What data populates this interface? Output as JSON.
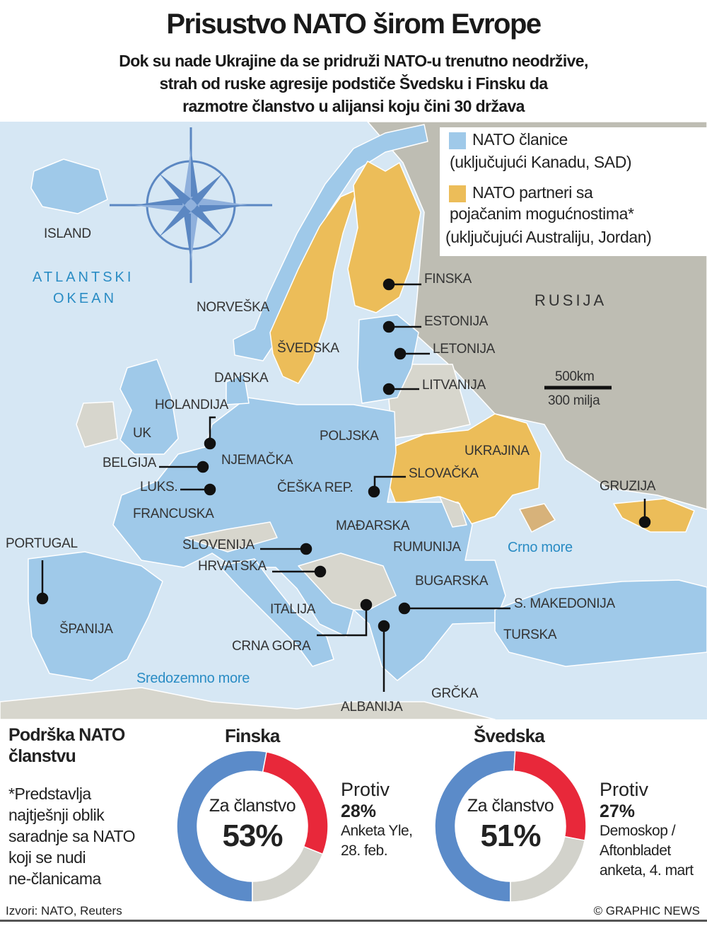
{
  "title": "Prisustvo NATO širom Evrope",
  "subtitle": [
    "Dok su nade Ukrajine da se pridruži NATO-u trenutno neodržive,",
    "strah od ruske agresije  podstiče Švedsku i Finsku da",
    "razmotre članstvo u alijansi koju čini 30 država"
  ],
  "colors": {
    "nato": "#9fc9e9",
    "partner": "#ecbd59",
    "non_member": "#d7d6cd",
    "russia": "#bebdb3",
    "sea": "#d6e7f4",
    "for": "#5b8bc9",
    "against": "#e8283a",
    "undecided": "#d2d2cb"
  },
  "legend": {
    "nato_line1": "NATO članice",
    "nato_line2": "(uključujući Kanadu, SAD)",
    "partner_line1": "NATO partneri sa",
    "partner_line2": "pojačanim mogućnostima*",
    "partner_line3": "(uključujući Australiju, Jordan)"
  },
  "scale": {
    "km": "500km",
    "miles": "300 milja"
  },
  "seas": {
    "atlantic1": "ATLANTSKI",
    "atlantic2": "OKEAN",
    "black": "Crno more",
    "med": "Sredozemno more"
  },
  "countries": {
    "island": "ISLAND",
    "norveska": "NORVEŠKA",
    "svedska": "ŠVEDSKA",
    "finska": "FINSKA",
    "estonija": "ESTONIJA",
    "letonija": "LETONIJA",
    "litvanija": "LITVANIJA",
    "rusija": "RUSIJA",
    "danska": "DANSKA",
    "holandija": "HOLANDIJA",
    "uk": "UK",
    "belgija": "BELGIJA",
    "luks": "LUKS.",
    "njemacka": "NJEMAČKA",
    "poljska": "POLJSKA",
    "ukrajina": "UKRAJINA",
    "slovacka": "SLOVAČKA",
    "ceska": "ČEŠKA REP.",
    "francuska": "FRANCUSKA",
    "gruzija": "GRUZIJA",
    "portugal": "PORTUGAL",
    "madjarska": "MAĐARSKA",
    "slovenija": "SLOVENIJA",
    "rumunija": "RUMUNIJA",
    "hrvatska": "HRVATSKA",
    "bugarska": "BUGARSKA",
    "makedonija": "S. MAKEDONIJA",
    "italija": "ITALIJA",
    "spanija": "ŠPANIJA",
    "turska": "TURSKA",
    "crna_gora": "CRNA GORA",
    "grcka": "GRČKA",
    "albanija": "ALBANIJA"
  },
  "support": {
    "heading1": "Podrška NATO",
    "heading2": "članstvu",
    "note": [
      "*Predstavlja",
      "najtješnji oblik",
      "saradnje sa NATO",
      "koji se nudi",
      "ne-članicama"
    ],
    "center_label": "Za članstvo",
    "against_label": "Protiv"
  },
  "chart_data": [
    {
      "type": "pie",
      "title": "Finska",
      "categories": [
        "Za članstvo",
        "Protiv",
        "Ostalo"
      ],
      "values": [
        53,
        28,
        19
      ],
      "labels": [
        "53%",
        "28%"
      ],
      "source": [
        "Anketa Yle,",
        "28. feb."
      ]
    },
    {
      "type": "pie",
      "title": "Švedska",
      "categories": [
        "Za članstvo",
        "Protiv",
        "Ostalo"
      ],
      "values": [
        51,
        27,
        22
      ],
      "labels": [
        "51%",
        "27%"
      ],
      "source": [
        "Demoskop /",
        "Aftonbladet",
        "anketa, 4. mart"
      ]
    }
  ],
  "footer": {
    "sources": "Izvori: NATO, Reuters",
    "credit": "© GRAPHIC NEWS"
  }
}
